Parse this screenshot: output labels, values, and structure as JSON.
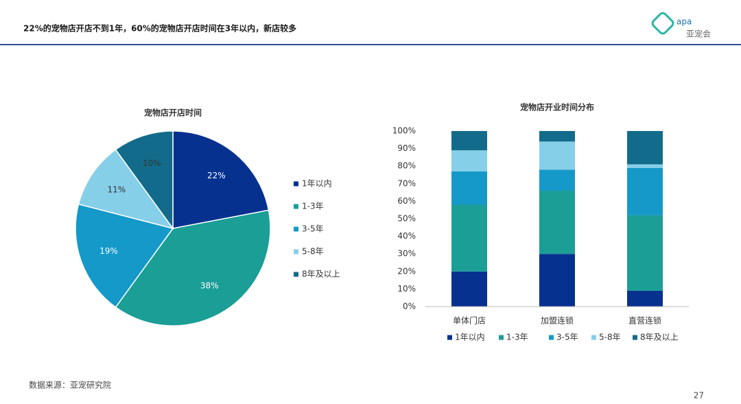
{
  "header": {
    "title": "22%的宠物店开店不到1年，60%的宠物店开店时间在3年以内，新店较多",
    "logo": "apa",
    "logo_sub": "亚宠会"
  },
  "chart_data": [
    {
      "type": "pie",
      "title": "宠物店开店时间",
      "categories": [
        "1年以内",
        "1-3年",
        "3-5年",
        "5-8年",
        "8年及以上"
      ],
      "values": [
        22,
        38,
        19,
        11,
        10
      ],
      "value_labels": [
        "22%",
        "38%",
        "19%",
        "11%",
        "10%"
      ],
      "colors": [
        "#06318f",
        "#1a9e96",
        "#1599c9",
        "#86cfe8",
        "#126b8a"
      ],
      "legend": "right"
    },
    {
      "type": "stacked_bar",
      "title": "宠物店开业时间分布",
      "categories": [
        "单体门店",
        "加盟连锁",
        "直营连锁"
      ],
      "series": [
        {
          "name": "1年以内",
          "color": "#06318f",
          "values": [
            20,
            30,
            9
          ]
        },
        {
          "name": "1-3年",
          "color": "#1a9e96",
          "values": [
            38,
            36,
            43
          ]
        },
        {
          "name": "3-5年",
          "color": "#1599c9",
          "values": [
            19,
            12,
            27
          ]
        },
        {
          "name": "5-8年",
          "color": "#86cfe8",
          "values": [
            12,
            16,
            2
          ]
        },
        {
          "name": "8年及以上",
          "color": "#126b8a",
          "values": [
            11,
            6,
            19
          ]
        }
      ],
      "ylim": [
        0,
        100
      ],
      "yticks": [
        {
          "value": 0,
          "label": "0%"
        },
        {
          "value": 10,
          "label": "10%"
        },
        {
          "value": 20,
          "label": "20%"
        },
        {
          "value": 30,
          "label": "30%"
        },
        {
          "value": 40,
          "label": "40%"
        },
        {
          "value": 50,
          "label": "50%"
        },
        {
          "value": 60,
          "label": "60%"
        },
        {
          "value": 70,
          "label": "70%"
        },
        {
          "value": 80,
          "label": "80%"
        },
        {
          "value": 90,
          "label": "90%"
        },
        {
          "value": 100,
          "label": "100%"
        }
      ],
      "grid": false,
      "legend": "bottom"
    }
  ],
  "footer": {
    "source": "数据来源：亚宠研究院",
    "page": 27
  }
}
